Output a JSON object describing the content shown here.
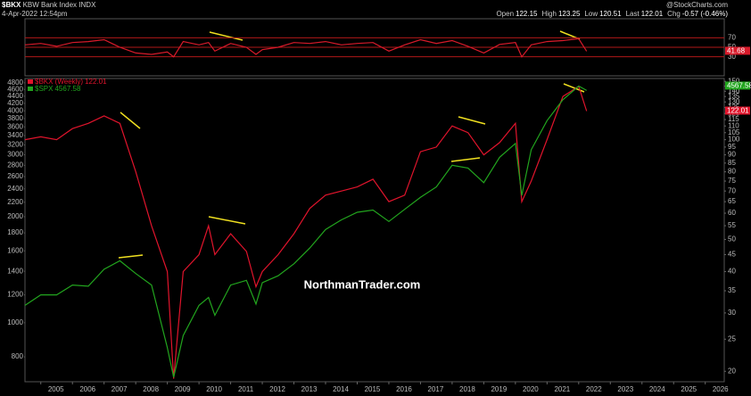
{
  "header": {
    "symbol": "$BKX",
    "name": "KBW Bank Index",
    "exchange": "INDX",
    "date": "4-Apr-2022 12:54pm",
    "quote": [
      {
        "label": "Open",
        "value": "122.15"
      },
      {
        "label": "High",
        "value": "123.25"
      },
      {
        "label": "Low",
        "value": "120.51"
      },
      {
        "label": "Last",
        "value": "122.01"
      },
      {
        "label": "Chg",
        "value": "-0.57 (-0.46%)"
      }
    ],
    "source": "@StockCharts.com"
  },
  "watermark": "NorthmanTrader.com",
  "chart_data": [
    {
      "type": "line",
      "x": [
        2004.5,
        2005,
        2005.5,
        2006,
        2006.5,
        2007,
        2007.5,
        2008,
        2008.5,
        2009,
        2009.2,
        2009.5,
        2010,
        2010.3,
        2010.5,
        2011,
        2011.5,
        2011.8,
        2012,
        2012.5,
        2013,
        2013.5,
        2014,
        2014.5,
        2015,
        2015.5,
        2016,
        2016.5,
        2017,
        2017.5,
        2018,
        2018.5,
        2019,
        2019.5,
        2020,
        2020.2,
        2020.5,
        2021,
        2021.5,
        2022,
        2022.25
      ],
      "xlim": [
        2004.5,
        2026.6
      ],
      "ylim": [
        -10,
        110
      ],
      "yticks": [
        30,
        50,
        70
      ],
      "y_axis_side": "right",
      "grid": true,
      "grid_color": "#b01818",
      "series": [
        {
          "color": "#d81a2a",
          "values": [
            55,
            58,
            52,
            60,
            62,
            66,
            50,
            38,
            35,
            40,
            30,
            62,
            55,
            60,
            42,
            58,
            50,
            35,
            45,
            50,
            60,
            58,
            62,
            55,
            58,
            60,
            42,
            55,
            66,
            58,
            64,
            52,
            38,
            56,
            60,
            30,
            55,
            62,
            64,
            68,
            41.68
          ]
        }
      ]
    },
    {
      "type": "line",
      "x": [
        2004.5,
        2005,
        2005.5,
        2006,
        2006.5,
        2007,
        2007.5,
        2008,
        2008.5,
        2009,
        2009.2,
        2009.5,
        2010,
        2010.3,
        2010.5,
        2011,
        2011.5,
        2011.8,
        2012,
        2012.5,
        2013,
        2013.5,
        2014,
        2014.5,
        2015,
        2015.5,
        2016,
        2016.5,
        2017,
        2017.5,
        2018,
        2018.5,
        2019,
        2019.5,
        2020,
        2020.2,
        2020.5,
        2021,
        2021.5,
        2022,
        2022.25
      ],
      "xlim": [
        2004.5,
        2026.6
      ],
      "xticks": [
        2005,
        2006,
        2007,
        2008,
        2009,
        2010,
        2011,
        2012,
        2013,
        2014,
        2015,
        2016,
        2017,
        2018,
        2019,
        2020,
        2021,
        2022,
        2023,
        2024,
        2025,
        2026
      ],
      "log_scale": true,
      "ylim": [
        680,
        4940
      ],
      "yticks": [
        800,
        1000,
        1200,
        1400,
        1600,
        1800,
        2000,
        2200,
        2400,
        2600,
        2800,
        3000,
        3200,
        3400,
        3600,
        3800,
        4000,
        4200,
        4400,
        4600,
        4800
      ],
      "y2lim": [
        18.6,
        153
      ],
      "y2ticks": [
        20,
        25,
        30,
        35,
        40,
        45,
        50,
        55,
        60,
        65,
        70,
        75,
        80,
        85,
        90,
        95,
        100,
        105,
        110,
        115,
        120,
        125,
        130,
        135,
        140,
        145,
        150
      ],
      "series": [
        {
          "name": "$BKX (Weekly)",
          "color": "#e0142c",
          "axis": "y2",
          "values": [
            100,
            102,
            100,
            108,
            112,
            118,
            112,
            80,
            55,
            40,
            19,
            40,
            45,
            55,
            45,
            52,
            46,
            36,
            40,
            45,
            52,
            62,
            68,
            70,
            72,
            76,
            65,
            68,
            92,
            95,
            110,
            105,
            90,
            98,
            112,
            65,
            75,
            100,
            135,
            145,
            122.01
          ]
        },
        {
          "name": "$SPX",
          "color": "#22a51e",
          "values": [
            1120,
            1200,
            1200,
            1280,
            1270,
            1420,
            1500,
            1380,
            1280,
            850,
            700,
            920,
            1120,
            1180,
            1050,
            1280,
            1320,
            1130,
            1300,
            1360,
            1470,
            1630,
            1840,
            1960,
            2060,
            2090,
            1940,
            2100,
            2270,
            2430,
            2800,
            2750,
            2500,
            2950,
            3230,
            2300,
            3100,
            3750,
            4300,
            4700,
            4567.58
          ]
        }
      ]
    }
  ]
}
